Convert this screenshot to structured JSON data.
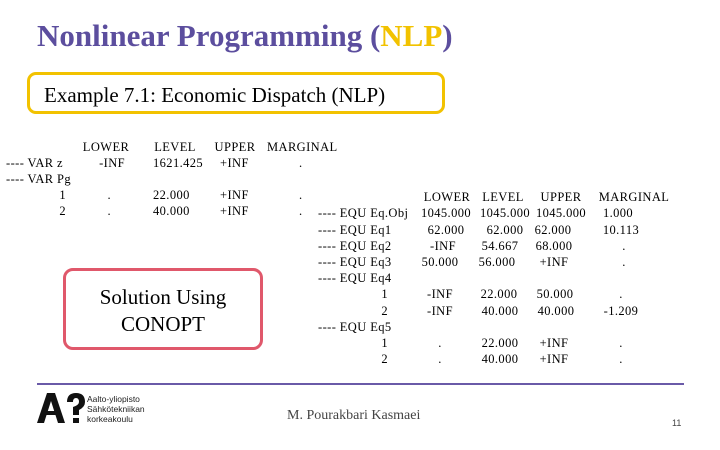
{
  "slide": {
    "title_main": "Nonlinear Programming (",
    "title_highlight": "NLP",
    "title_end": ")",
    "example": "Example 7.1: Economic Dispatch (NLP)",
    "solution_line1": "Solution Using",
    "solution_line2": "CONOPT",
    "author": "M. Pourakbari Kasmaei",
    "page_number": "11",
    "logo": {
      "line1": "Aalto-yliopisto",
      "line2": "Sähkötekniikan",
      "line3": "korkeakoulu"
    }
  },
  "var_table": {
    "headers": [
      "LOWER",
      "LEVEL",
      "UPPER",
      "MARGINAL"
    ],
    "rows": [
      {
        "label": "---- VAR z",
        "lower": "-INF",
        "level": "1621.425",
        "upper": "+INF",
        "marginal": "."
      },
      {
        "label": "---- VAR Pg",
        "lower": "",
        "level": "",
        "upper": "",
        "marginal": ""
      },
      {
        "label": "1",
        "lower": ".",
        "level": "22.000",
        "upper": "+INF",
        "marginal": "."
      },
      {
        "label": "2",
        "lower": ".",
        "level": "40.000",
        "upper": "+INF",
        "marginal": "."
      }
    ]
  },
  "equ_table": {
    "headers": [
      "LOWER",
      "LEVEL",
      "UPPER",
      "MARGINAL"
    ],
    "rows": [
      {
        "label": "---- EQU Eq.Obj",
        "lower": "1045.000",
        "level": "1045.000",
        "upper": "1045.000",
        "marginal": "1.000"
      },
      {
        "label": "---- EQU Eq1",
        "lower": "62.000",
        "level": "62.000",
        "upper": "62.000",
        "marginal": "10.113"
      },
      {
        "label": "---- EQU Eq2",
        "lower": "-INF",
        "level": "54.667",
        "upper": "68.000",
        "marginal": "."
      },
      {
        "label": "---- EQU Eq3",
        "lower": "50.000",
        "level": "56.000",
        "upper": "+INF",
        "marginal": "."
      },
      {
        "label": "---- EQU Eq4",
        "lower": "",
        "level": "",
        "upper": "",
        "marginal": ""
      },
      {
        "label": "1",
        "lower": "-INF",
        "level": "22.000",
        "upper": "50.000",
        "marginal": "."
      },
      {
        "label": "2",
        "lower": "-INF",
        "level": "40.000",
        "upper": "40.000",
        "marginal": "-1.209"
      },
      {
        "label": "---- EQU Eq5",
        "lower": "",
        "level": "",
        "upper": "",
        "marginal": ""
      },
      {
        "label": "1",
        "lower": ".",
        "level": "22.000",
        "upper": "+INF",
        "marginal": "."
      },
      {
        "label": "2",
        "lower": ".",
        "level": "40.000",
        "upper": "+INF",
        "marginal": "."
      }
    ]
  },
  "colors": {
    "title": "#5c4e9e",
    "highlight": "#f2c200",
    "solution_border": "#e0586b",
    "rule": "#6a5aa8"
  }
}
